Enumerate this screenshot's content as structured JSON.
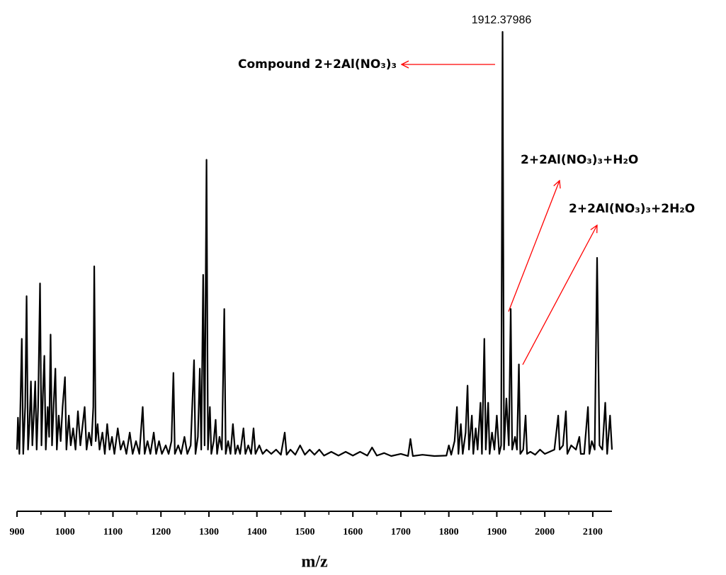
{
  "chart_data": {
    "type": "line",
    "xlabel": "m/z",
    "color": "#000000",
    "xlim": [
      900,
      2140
    ],
    "ylim": [
      0,
      100
    ],
    "xticks": [
      900,
      1000,
      1100,
      1200,
      1300,
      1400,
      1500,
      1600,
      1700,
      1800,
      1900,
      2000,
      2100
    ],
    "xminorticks": [
      950,
      1050,
      1150,
      1250,
      1350,
      1450,
      1550,
      1650,
      1750,
      1850,
      1950,
      2050
    ],
    "peak_label": "1912.37986",
    "annotations": [
      "Compound 2+2Al(NO₃)₃",
      "2+2Al(NO₃)₃+H₂O",
      "2+2Al(NO₃)₃+2H₂O"
    ],
    "x": [
      900,
      902,
      905,
      910,
      913,
      917,
      920,
      923,
      926,
      929,
      932,
      935,
      938,
      941,
      944,
      948,
      951,
      954,
      957,
      960,
      964,
      967,
      970,
      973,
      977,
      980,
      983,
      987,
      991,
      995,
      1000,
      1003,
      1008,
      1012,
      1017,
      1022,
      1027,
      1032,
      1037,
      1041,
      1045,
      1050,
      1055,
      1059,
      1061,
      1064,
      1068,
      1072,
      1078,
      1083,
      1088,
      1093,
      1098,
      1103,
      1110,
      1116,
      1122,
      1128,
      1135,
      1141,
      1148,
      1155,
      1162,
      1166,
      1172,
      1178,
      1185,
      1190,
      1196,
      1202,
      1210,
      1216,
      1222,
      1226,
      1229,
      1236,
      1242,
      1249,
      1255,
      1262,
      1269,
      1272,
      1277,
      1281,
      1284,
      1288,
      1291,
      1295,
      1298,
      1302,
      1305,
      1310,
      1314,
      1317,
      1322,
      1327,
      1332,
      1335,
      1340,
      1345,
      1350,
      1355,
      1360,
      1365,
      1372,
      1376,
      1382,
      1388,
      1393,
      1397,
      1405,
      1412,
      1420,
      1430,
      1440,
      1450,
      1458,
      1462,
      1470,
      1480,
      1490,
      1500,
      1510,
      1520,
      1530,
      1540,
      1555,
      1570,
      1585,
      1600,
      1615,
      1630,
      1640,
      1650,
      1665,
      1680,
      1700,
      1715,
      1720,
      1725,
      1745,
      1770,
      1795,
      1800,
      1805,
      1812,
      1817,
      1820,
      1825,
      1829,
      1835,
      1839,
      1842,
      1848,
      1851,
      1856,
      1860,
      1866,
      1869,
      1874,
      1877,
      1882,
      1885,
      1890,
      1895,
      1900,
      1905,
      1909,
      1912,
      1915,
      1920,
      1925,
      1929,
      1932,
      1938,
      1942,
      1946,
      1949,
      1955,
      1960,
      1963,
      1970,
      1980,
      1990,
      2000,
      2010,
      2020,
      2028,
      2031,
      2038,
      2044,
      2047,
      2055,
      2065,
      2072,
      2075,
      2082,
      2090,
      2093,
      2098,
      2104,
      2109,
      2114,
      2120,
      2126,
      2130,
      2136,
      2140
    ],
    "values": [
      2,
      9.5,
      1,
      28,
      1,
      12,
      38,
      2,
      8,
      18,
      3,
      10,
      18,
      2,
      12,
      41,
      3,
      15,
      24,
      2,
      12,
      5,
      29,
      3,
      14,
      21,
      2,
      10,
      4,
      12,
      19,
      2,
      10,
      3,
      7,
      2,
      11,
      3,
      8,
      12,
      2,
      6,
      3,
      12,
      45,
      4,
      8,
      2,
      6,
      1,
      8,
      2,
      5,
      1,
      7,
      2,
      4,
      1,
      6,
      1,
      4,
      1,
      12,
      1,
      4,
      1,
      6,
      1,
      4,
      1,
      3,
      1,
      4,
      20,
      1,
      3,
      1,
      5,
      1,
      3,
      23,
      1,
      5,
      21,
      2,
      43,
      3,
      70,
      2,
      12,
      1,
      4,
      9,
      1,
      5,
      2,
      35,
      1,
      4,
      1,
      8,
      1,
      3,
      1,
      7,
      1,
      3,
      1,
      7,
      1,
      3,
      1,
      2,
      1,
      2,
      0.8,
      6,
      0.8,
      2,
      0.8,
      3,
      0.8,
      2,
      0.8,
      2,
      0.6,
      1.5,
      0.6,
      1.5,
      0.6,
      1.5,
      0.6,
      2.5,
      0.6,
      1.2,
      0.5,
      1,
      0.5,
      4.5,
      0.5,
      0.8,
      0.5,
      0.6,
      3,
      0.8,
      4,
      12,
      1,
      8,
      1,
      6,
      17,
      2,
      10,
      1,
      7,
      2,
      13,
      1,
      28,
      2,
      13,
      1,
      6,
      2,
      10,
      1,
      3,
      100,
      2,
      14,
      3,
      35,
      2,
      5,
      2,
      22,
      1,
      2,
      10,
      1,
      1.5,
      0.8,
      2,
      1,
      1.5,
      2,
      10,
      2,
      3,
      11,
      1,
      3,
      2,
      5,
      1,
      1,
      12,
      1,
      4,
      2,
      47,
      3,
      2,
      13,
      1,
      10,
      2
    ]
  }
}
